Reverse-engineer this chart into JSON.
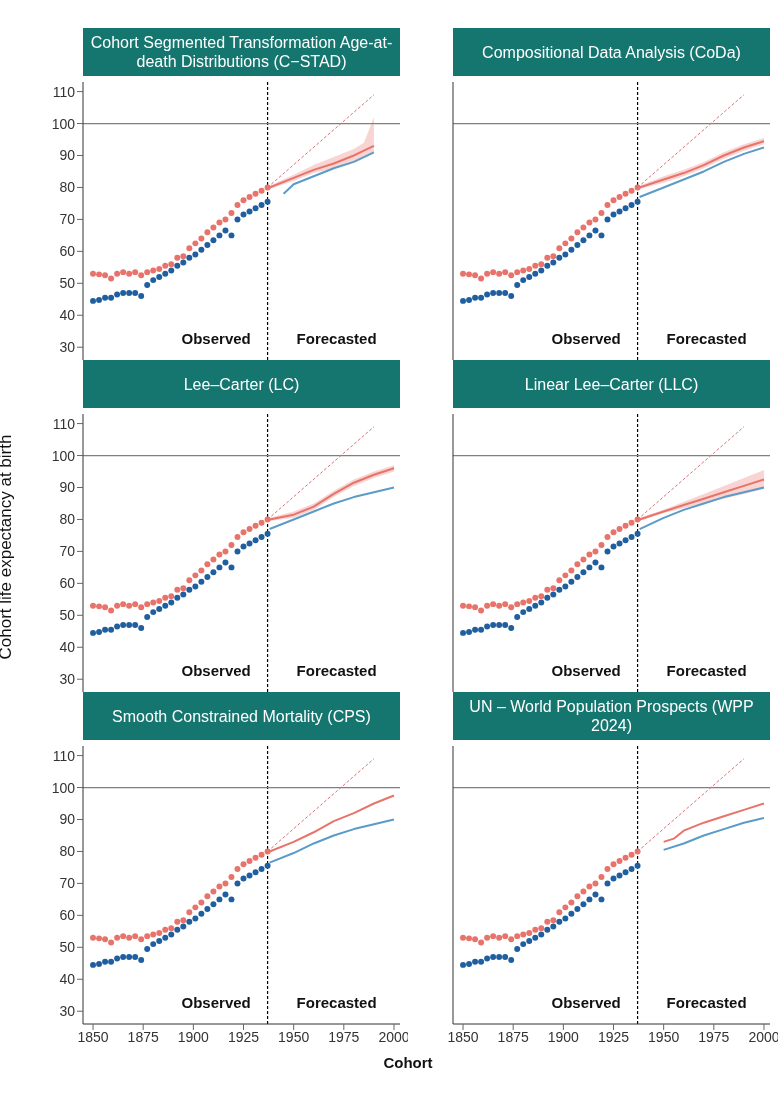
{
  "chart_data": [
    {
      "type": "scatter",
      "title": "Cohort Segmented Transformation Age-at-death Distributions (C−STAD)",
      "annotations": [
        "Observed",
        "Forecasted"
      ],
      "xlim": [
        1845,
        2003
      ],
      "xticks": [
        1850,
        1875,
        1900,
        1925,
        1950,
        1975,
        2000
      ],
      "ylim": [
        26,
        113
      ],
      "yticks": [
        30,
        40,
        50,
        60,
        70,
        80,
        90,
        100,
        110
      ],
      "tick_labels": "y",
      "ref_lines": [
        {
          "axis": "x",
          "value": 1937,
          "color": "#000000",
          "line_style": "dashed"
        },
        {
          "axis": "y",
          "value": 100,
          "color": "#808080"
        }
      ],
      "series": [
        {
          "type": "scatter",
          "marker": "circle",
          "color": "#e8736a",
          "x": [
            1850,
            1853,
            1856,
            1859,
            1862,
            1865,
            1868,
            1871,
            1874,
            1877,
            1880,
            1883,
            1886,
            1889,
            1892,
            1895,
            1898,
            1901,
            1904,
            1907,
            1910,
            1913,
            1916,
            1919,
            1922,
            1925,
            1928,
            1931,
            1934,
            1937
          ],
          "values": [
            53,
            52.8,
            52.5,
            51.5,
            53,
            53.5,
            53,
            53.5,
            52.5,
            53.5,
            54,
            54.5,
            55.5,
            56,
            58,
            58.5,
            61,
            62.5,
            64,
            66,
            67.5,
            69,
            70,
            72,
            74.5,
            76,
            77,
            78,
            79,
            80
          ]
        },
        {
          "type": "scatter",
          "marker": "circle",
          "color": "#1f5fa0",
          "x": [
            1850,
            1853,
            1856,
            1859,
            1862,
            1865,
            1868,
            1871,
            1874,
            1877,
            1880,
            1883,
            1886,
            1889,
            1892,
            1895,
            1898,
            1901,
            1904,
            1907,
            1910,
            1913,
            1916,
            1919,
            1922,
            1925,
            1928,
            1931,
            1934,
            1937
          ],
          "values": [
            44.5,
            44.8,
            45.5,
            45.5,
            46.5,
            47,
            47,
            47,
            46,
            49.5,
            51,
            52,
            53,
            54,
            55.5,
            56.5,
            58,
            59,
            60.5,
            62,
            63.5,
            65,
            66.5,
            65,
            70,
            71.5,
            72.5,
            73.5,
            74.5,
            75.5
          ]
        },
        {
          "type": "line",
          "color": "#e8736a",
          "x": [
            1938,
            1950,
            1960,
            1970,
            1980,
            1985,
            1990
          ],
          "values": [
            80,
            83,
            85.5,
            87.5,
            90,
            91.5,
            93
          ],
          "lower": [
            79.5,
            82,
            84.5,
            86,
            88,
            89.5,
            91
          ],
          "upper": [
            80.5,
            84,
            87,
            89.5,
            92,
            94,
            102
          ]
        },
        {
          "type": "line",
          "color": "#5b9bc8",
          "x": [
            1945,
            1950,
            1960,
            1970,
            1980,
            1990
          ],
          "values": [
            78,
            81,
            83.5,
            86,
            88,
            91
          ]
        },
        {
          "type": "line",
          "color": "#d9737a",
          "line_style": "dashed",
          "x": [
            1937,
            1990
          ],
          "values": [
            80,
            109
          ]
        }
      ]
    },
    {
      "type": "scatter",
      "title": "Compositional Data Analysis (CoDa)",
      "annotations": [
        "Observed",
        "Forecasted"
      ],
      "xlim": [
        1845,
        2003
      ],
      "xticks": [
        1850,
        1875,
        1900,
        1925,
        1950,
        1975,
        2000
      ],
      "ylim": [
        26,
        113
      ],
      "yticks": [
        30,
        40,
        50,
        60,
        70,
        80,
        90,
        100,
        110
      ],
      "tick_labels": false,
      "ref_lines": [
        {
          "axis": "x",
          "value": 1937,
          "color": "#000000",
          "line_style": "dashed"
        },
        {
          "axis": "y",
          "value": 100,
          "color": "#808080"
        }
      ],
      "series": [
        {
          "type": "scatter",
          "marker": "circle",
          "color": "#e8736a",
          "x": [
            1850,
            1853,
            1856,
            1859,
            1862,
            1865,
            1868,
            1871,
            1874,
            1877,
            1880,
            1883,
            1886,
            1889,
            1892,
            1895,
            1898,
            1901,
            1904,
            1907,
            1910,
            1913,
            1916,
            1919,
            1922,
            1925,
            1928,
            1931,
            1934,
            1937
          ],
          "values": [
            53,
            52.8,
            52.5,
            51.5,
            53,
            53.5,
            53,
            53.5,
            52.5,
            53.5,
            54,
            54.5,
            55.5,
            56,
            58,
            58.5,
            61,
            62.5,
            64,
            66,
            67.5,
            69,
            70,
            72,
            74.5,
            76,
            77,
            78,
            79,
            80
          ]
        },
        {
          "type": "scatter",
          "marker": "circle",
          "color": "#1f5fa0",
          "x": [
            1850,
            1853,
            1856,
            1859,
            1862,
            1865,
            1868,
            1871,
            1874,
            1877,
            1880,
            1883,
            1886,
            1889,
            1892,
            1895,
            1898,
            1901,
            1904,
            1907,
            1910,
            1913,
            1916,
            1919,
            1922,
            1925,
            1928,
            1931,
            1934,
            1937
          ],
          "values": [
            44.5,
            44.8,
            45.5,
            45.5,
            46.5,
            47,
            47,
            47,
            46,
            49.5,
            51,
            52,
            53,
            54,
            55.5,
            56.5,
            58,
            59,
            60.5,
            62,
            63.5,
            65,
            66.5,
            65,
            70,
            71.5,
            72.5,
            73.5,
            74.5,
            75.5
          ]
        },
        {
          "type": "line",
          "color": "#e8736a",
          "x": [
            1938,
            1950,
            1960,
            1970,
            1980,
            1990,
            2000
          ],
          "values": [
            80,
            82.5,
            84.5,
            87,
            90,
            92.5,
            94.5
          ],
          "lower": [
            79.5,
            81.5,
            83.5,
            86,
            89,
            91.5,
            93.5
          ],
          "upper": [
            80.5,
            83.5,
            85.5,
            88,
            91,
            93.5,
            95.5
          ]
        },
        {
          "type": "line",
          "color": "#5b9bc8",
          "x": [
            1938,
            1950,
            1960,
            1970,
            1980,
            1990,
            2000
          ],
          "values": [
            77,
            80,
            82.5,
            85,
            88,
            90.5,
            92.5
          ]
        },
        {
          "type": "line",
          "color": "#d9737a",
          "line_style": "dashed",
          "x": [
            1937,
            1990
          ],
          "values": [
            80,
            109
          ]
        }
      ]
    },
    {
      "type": "scatter",
      "title": "Lee–Carter (LC)",
      "ylabel": "Cohort life expectancy at birth",
      "annotations": [
        "Observed",
        "Forecasted"
      ],
      "xlim": [
        1845,
        2003
      ],
      "xticks": [
        1850,
        1875,
        1900,
        1925,
        1950,
        1975,
        2000
      ],
      "ylim": [
        26,
        113
      ],
      "yticks": [
        30,
        40,
        50,
        60,
        70,
        80,
        90,
        100,
        110
      ],
      "tick_labels": "y",
      "ref_lines": [
        {
          "axis": "x",
          "value": 1937,
          "color": "#000000",
          "line_style": "dashed"
        },
        {
          "axis": "y",
          "value": 100,
          "color": "#808080"
        }
      ],
      "series": [
        {
          "type": "scatter",
          "marker": "circle",
          "color": "#e8736a",
          "x": [
            1850,
            1853,
            1856,
            1859,
            1862,
            1865,
            1868,
            1871,
            1874,
            1877,
            1880,
            1883,
            1886,
            1889,
            1892,
            1895,
            1898,
            1901,
            1904,
            1907,
            1910,
            1913,
            1916,
            1919,
            1922,
            1925,
            1928,
            1931,
            1934,
            1937
          ],
          "values": [
            53,
            52.8,
            52.5,
            51.5,
            53,
            53.5,
            53,
            53.5,
            52.5,
            53.5,
            54,
            54.5,
            55.5,
            56,
            58,
            58.5,
            61,
            62.5,
            64,
            66,
            67.5,
            69,
            70,
            72,
            74.5,
            76,
            77,
            78,
            79,
            80
          ]
        },
        {
          "type": "scatter",
          "marker": "circle",
          "color": "#1f5fa0",
          "x": [
            1850,
            1853,
            1856,
            1859,
            1862,
            1865,
            1868,
            1871,
            1874,
            1877,
            1880,
            1883,
            1886,
            1889,
            1892,
            1895,
            1898,
            1901,
            1904,
            1907,
            1910,
            1913,
            1916,
            1919,
            1922,
            1925,
            1928,
            1931,
            1934,
            1937
          ],
          "values": [
            44.5,
            44.8,
            45.5,
            45.5,
            46.5,
            47,
            47,
            47,
            46,
            49.5,
            51,
            52,
            53,
            54,
            55.5,
            56.5,
            58,
            59,
            60.5,
            62,
            63.5,
            65,
            66.5,
            65,
            70,
            71.5,
            72.5,
            73.5,
            74.5,
            75.5
          ]
        },
        {
          "type": "line",
          "color": "#e8736a",
          "x": [
            1938,
            1950,
            1960,
            1970,
            1980,
            1990,
            2000
          ],
          "values": [
            80,
            81.5,
            84,
            88,
            91.5,
            94,
            96
          ],
          "lower": [
            79.5,
            80.5,
            83,
            87,
            90.5,
            93,
            95
          ],
          "upper": [
            80.5,
            82.5,
            85,
            89,
            92.5,
            95,
            97
          ]
        },
        {
          "type": "line",
          "color": "#5b9bc8",
          "x": [
            1938,
            1950,
            1960,
            1970,
            1980,
            1990,
            2000
          ],
          "values": [
            77,
            80,
            82.5,
            85,
            87,
            88.5,
            90
          ]
        },
        {
          "type": "line",
          "color": "#d9737a",
          "line_style": "dashed",
          "x": [
            1937,
            1990
          ],
          "values": [
            80,
            109
          ]
        }
      ]
    },
    {
      "type": "scatter",
      "title": "Linear Lee–Carter (LLC)",
      "annotations": [
        "Observed",
        "Forecasted"
      ],
      "xlim": [
        1845,
        2003
      ],
      "xticks": [
        1850,
        1875,
        1900,
        1925,
        1950,
        1975,
        2000
      ],
      "ylim": [
        26,
        113
      ],
      "yticks": [
        30,
        40,
        50,
        60,
        70,
        80,
        90,
        100,
        110
      ],
      "tick_labels": false,
      "ref_lines": [
        {
          "axis": "x",
          "value": 1937,
          "color": "#000000",
          "line_style": "dashed"
        },
        {
          "axis": "y",
          "value": 100,
          "color": "#808080"
        }
      ],
      "series": [
        {
          "type": "scatter",
          "marker": "circle",
          "color": "#e8736a",
          "x": [
            1850,
            1853,
            1856,
            1859,
            1862,
            1865,
            1868,
            1871,
            1874,
            1877,
            1880,
            1883,
            1886,
            1889,
            1892,
            1895,
            1898,
            1901,
            1904,
            1907,
            1910,
            1913,
            1916,
            1919,
            1922,
            1925,
            1928,
            1931,
            1934,
            1937
          ],
          "values": [
            53,
            52.8,
            52.5,
            51.5,
            53,
            53.5,
            53,
            53.5,
            52.5,
            53.5,
            54,
            54.5,
            55.5,
            56,
            58,
            58.5,
            61,
            62.5,
            64,
            66,
            67.5,
            69,
            70,
            72,
            74.5,
            76,
            77,
            78,
            79,
            80
          ]
        },
        {
          "type": "scatter",
          "marker": "circle",
          "color": "#1f5fa0",
          "x": [
            1850,
            1853,
            1856,
            1859,
            1862,
            1865,
            1868,
            1871,
            1874,
            1877,
            1880,
            1883,
            1886,
            1889,
            1892,
            1895,
            1898,
            1901,
            1904,
            1907,
            1910,
            1913,
            1916,
            1919,
            1922,
            1925,
            1928,
            1931,
            1934,
            1937
          ],
          "values": [
            44.5,
            44.8,
            45.5,
            45.5,
            46.5,
            47,
            47,
            47,
            46,
            49.5,
            51,
            52,
            53,
            54,
            55.5,
            56.5,
            58,
            59,
            60.5,
            62,
            63.5,
            65,
            66.5,
            65,
            70,
            71.5,
            72.5,
            73.5,
            74.5,
            75.5
          ]
        },
        {
          "type": "line",
          "color": "#e8736a",
          "x": [
            1938,
            1950,
            1960,
            1970,
            1980,
            1990,
            2000
          ],
          "values": [
            80,
            82.5,
            84.5,
            86.5,
            88.5,
            90.5,
            92.5
          ],
          "lower": [
            79.5,
            82,
            83.5,
            85,
            86.5,
            88,
            89.5
          ],
          "upper": [
            80.5,
            83,
            85.5,
            88,
            90.5,
            93,
            95.5
          ]
        },
        {
          "type": "line",
          "color": "#5b9bc8",
          "x": [
            1938,
            1950,
            1960,
            1970,
            1980,
            1990,
            2000
          ],
          "values": [
            77,
            80.5,
            83,
            85,
            87,
            88.5,
            90
          ]
        },
        {
          "type": "line",
          "color": "#d9737a",
          "line_style": "dashed",
          "x": [
            1937,
            1990
          ],
          "values": [
            80,
            109
          ]
        }
      ]
    },
    {
      "type": "scatter",
      "title": "Smooth Constrained Mortality (CPS)",
      "xlabel": "Cohort",
      "annotations": [
        "Observed",
        "Forecasted"
      ],
      "xlim": [
        1845,
        2003
      ],
      "xticks": [
        1850,
        1875,
        1900,
        1925,
        1950,
        1975,
        2000
      ],
      "ylim": [
        26,
        113
      ],
      "yticks": [
        30,
        40,
        50,
        60,
        70,
        80,
        90,
        100,
        110
      ],
      "ref_lines": [
        {
          "axis": "x",
          "value": 1937,
          "color": "#000000",
          "line_style": "dashed"
        },
        {
          "axis": "y",
          "value": 100,
          "color": "#808080"
        }
      ],
      "series": [
        {
          "type": "scatter",
          "marker": "circle",
          "color": "#e8736a",
          "x": [
            1850,
            1853,
            1856,
            1859,
            1862,
            1865,
            1868,
            1871,
            1874,
            1877,
            1880,
            1883,
            1886,
            1889,
            1892,
            1895,
            1898,
            1901,
            1904,
            1907,
            1910,
            1913,
            1916,
            1919,
            1922,
            1925,
            1928,
            1931,
            1934,
            1937
          ],
          "values": [
            53,
            52.8,
            52.5,
            51.5,
            53,
            53.5,
            53,
            53.5,
            52.5,
            53.5,
            54,
            54.5,
            55.5,
            56,
            58,
            58.5,
            61,
            62.5,
            64,
            66,
            67.5,
            69,
            70,
            72,
            74.5,
            76,
            77,
            78,
            79,
            80
          ]
        },
        {
          "type": "scatter",
          "marker": "circle",
          "color": "#1f5fa0",
          "x": [
            1850,
            1853,
            1856,
            1859,
            1862,
            1865,
            1868,
            1871,
            1874,
            1877,
            1880,
            1883,
            1886,
            1889,
            1892,
            1895,
            1898,
            1901,
            1904,
            1907,
            1910,
            1913,
            1916,
            1919,
            1922,
            1925,
            1928,
            1931,
            1934,
            1937
          ],
          "values": [
            44.5,
            44.8,
            45.5,
            45.5,
            46.5,
            47,
            47,
            47,
            46,
            49.5,
            51,
            52,
            53,
            54,
            55.5,
            56.5,
            58,
            59,
            60.5,
            62,
            63.5,
            65,
            66.5,
            65,
            70,
            71.5,
            72.5,
            73.5,
            74.5,
            75.5
          ]
        },
        {
          "type": "line",
          "color": "#e8736a",
          "x": [
            1938,
            1950,
            1960,
            1970,
            1980,
            1990,
            2000
          ],
          "values": [
            80,
            83,
            86,
            89.5,
            92,
            95,
            97.5
          ]
        },
        {
          "type": "line",
          "color": "#5b9bc8",
          "x": [
            1938,
            1950,
            1960,
            1970,
            1980,
            1990,
            2000
          ],
          "values": [
            76.5,
            79.5,
            82.5,
            85,
            87,
            88.5,
            90
          ]
        },
        {
          "type": "line",
          "color": "#d9737a",
          "line_style": "dashed",
          "x": [
            1937,
            1990
          ],
          "values": [
            80,
            109
          ]
        }
      ]
    },
    {
      "type": "scatter",
      "title": "UN – World Population Prospects (WPP 2024)",
      "annotations": [
        "Observed",
        "Forecasted"
      ],
      "xlim": [
        1845,
        2003
      ],
      "xticks": [
        1850,
        1875,
        1900,
        1925,
        1950,
        1975,
        2000
      ],
      "ylim": [
        26,
        113
      ],
      "yticks": [
        30,
        40,
        50,
        60,
        70,
        80,
        90,
        100,
        110
      ],
      "tick_labels": "x",
      "ref_lines": [
        {
          "axis": "x",
          "value": 1937,
          "color": "#000000",
          "line_style": "dashed"
        },
        {
          "axis": "y",
          "value": 100,
          "color": "#808080"
        }
      ],
      "series": [
        {
          "type": "scatter",
          "marker": "circle",
          "color": "#e8736a",
          "x": [
            1850,
            1853,
            1856,
            1859,
            1862,
            1865,
            1868,
            1871,
            1874,
            1877,
            1880,
            1883,
            1886,
            1889,
            1892,
            1895,
            1898,
            1901,
            1904,
            1907,
            1910,
            1913,
            1916,
            1919,
            1922,
            1925,
            1928,
            1931,
            1934,
            1937
          ],
          "values": [
            53,
            52.8,
            52.5,
            51.5,
            53,
            53.5,
            53,
            53.5,
            52.5,
            53.5,
            54,
            54.5,
            55.5,
            56,
            58,
            58.5,
            61,
            62.5,
            64,
            66,
            67.5,
            69,
            70,
            72,
            74.5,
            76,
            77,
            78,
            79,
            80
          ]
        },
        {
          "type": "scatter",
          "marker": "circle",
          "color": "#1f5fa0",
          "x": [
            1850,
            1853,
            1856,
            1859,
            1862,
            1865,
            1868,
            1871,
            1874,
            1877,
            1880,
            1883,
            1886,
            1889,
            1892,
            1895,
            1898,
            1901,
            1904,
            1907,
            1910,
            1913,
            1916,
            1919,
            1922,
            1925,
            1928,
            1931,
            1934,
            1937
          ],
          "values": [
            44.5,
            44.8,
            45.5,
            45.5,
            46.5,
            47,
            47,
            47,
            46,
            49.5,
            51,
            52,
            53,
            54,
            55.5,
            56.5,
            58,
            59,
            60.5,
            62,
            63.5,
            65,
            66.5,
            65,
            70,
            71.5,
            72.5,
            73.5,
            74.5,
            75.5
          ]
        },
        {
          "type": "line",
          "color": "#e8736a",
          "x": [
            1950,
            1955,
            1960,
            1970,
            1980,
            1990,
            2000
          ],
          "values": [
            83,
            84,
            86.5,
            89,
            91,
            93,
            95
          ]
        },
        {
          "type": "line",
          "color": "#5b9bc8",
          "x": [
            1950,
            1960,
            1970,
            1980,
            1990,
            2000
          ],
          "values": [
            80.5,
            82.5,
            85,
            87,
            89,
            90.5
          ]
        },
        {
          "type": "line",
          "color": "#d9737a",
          "line_style": "dashed",
          "x": [
            1937,
            1990
          ],
          "values": [
            80,
            109
          ]
        }
      ]
    }
  ]
}
